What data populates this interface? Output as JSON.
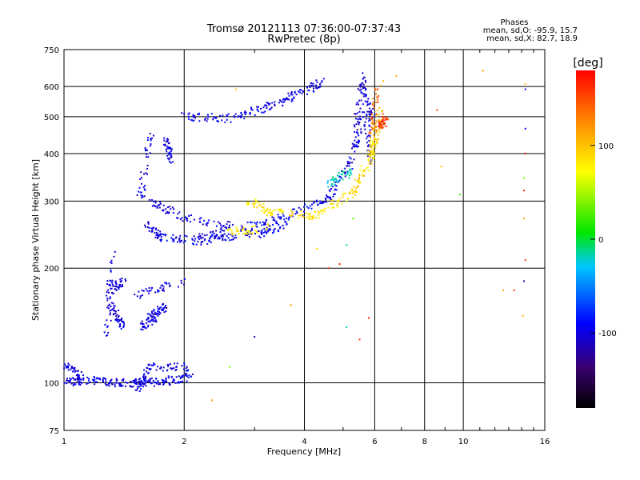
{
  "chart_data": {
    "type": "scatter",
    "title": "Tromsø 20121113 07:36:00-07:37:43",
    "subtitle": "RwPretec (8p)",
    "xlabel": "Frequency [MHz]",
    "ylabel": "Stationary phase Virtual Height [km]",
    "x_scale": "log2",
    "y_scale": "log",
    "xlim": [
      1,
      16
    ],
    "ylim": [
      75,
      750
    ],
    "x_ticks": [
      1,
      2,
      4,
      6,
      8,
      10,
      16
    ],
    "y_ticks": [
      75,
      100,
      200,
      300,
      400,
      500,
      600,
      750
    ],
    "grid": true,
    "colorbar": {
      "label": "[deg]",
      "range": [
        -180,
        180
      ],
      "ticks": [
        100,
        0,
        -100
      ],
      "colors": [
        "#000000",
        "#3a0070",
        "#0000ff",
        "#00c8ff",
        "#00e600",
        "#ffff00",
        "#ff8800",
        "#ff0000"
      ]
    },
    "stats": {
      "header": "Phases",
      "line_o": "mean, sd,O: -95.9, 15.7",
      "line_x": "mean, sd,X:  82.7, 18.9"
    },
    "series": [
      {
        "segments": [
          [
            1.0,
            100,
            1.15,
            102,
            -100
          ],
          [
            1.15,
            102,
            1.35,
            100,
            -95
          ],
          [
            1.35,
            100,
            1.55,
            100,
            -100
          ],
          [
            1.55,
            100,
            1.8,
            101,
            -98
          ],
          [
            1.8,
            101,
            2.1,
            104,
            -95
          ],
          [
            1.0,
            112,
            1.1,
            104,
            -100
          ],
          [
            1.28,
            130,
            1.32,
            220,
            -100
          ],
          [
            1.3,
            175,
            1.42,
            185,
            -100
          ],
          [
            1.32,
            160,
            1.4,
            140,
            -100
          ],
          [
            1.52,
            95,
            1.65,
            110,
            -100
          ],
          [
            1.6,
            110,
            2.05,
            110,
            -98
          ],
          [
            1.52,
            170,
            2.0,
            185,
            -100
          ],
          [
            1.55,
            140,
            1.7,
            150,
            -100
          ],
          [
            1.65,
            150,
            1.8,
            160,
            -100
          ],
          [
            1.55,
            300,
            1.65,
            450,
            -100
          ],
          [
            1.6,
            260,
            1.75,
            240,
            -100
          ],
          [
            1.75,
            240,
            2.2,
            236,
            -98
          ],
          [
            2.2,
            236,
            3.0,
            245,
            -95
          ],
          [
            3.0,
            245,
            3.6,
            260,
            -95
          ],
          [
            1.65,
            300,
            2.0,
            270,
            -100
          ],
          [
            2.0,
            270,
            2.8,
            255,
            -98
          ],
          [
            2.8,
            255,
            3.5,
            270,
            -95
          ],
          [
            3.5,
            270,
            4.5,
            300,
            -95
          ],
          [
            4.5,
            300,
            5.2,
            370,
            -95
          ],
          [
            5.2,
            370,
            5.5,
            460,
            -100
          ],
          [
            5.4,
            460,
            5.6,
            640,
            -100
          ],
          [
            5.6,
            640,
            5.9,
            500,
            -100
          ],
          [
            5.7,
            520,
            5.85,
            380,
            -95
          ],
          [
            1.85,
            380,
            1.8,
            440,
            -100
          ],
          [
            2.0,
            500,
            2.6,
            495,
            -95
          ],
          [
            2.6,
            495,
            3.2,
            530,
            -95
          ],
          [
            3.2,
            530,
            3.8,
            570,
            -98
          ],
          [
            3.8,
            570,
            4.5,
            620,
            -98
          ],
          [
            2.2,
            240,
            2.6,
            250,
            -100
          ],
          [
            2.6,
            250,
            3.3,
            255,
            80
          ],
          [
            2.9,
            300,
            3.3,
            280,
            82
          ],
          [
            3.3,
            280,
            4.2,
            275,
            85
          ],
          [
            4.2,
            275,
            5.2,
            310,
            88
          ],
          [
            5.2,
            310,
            5.8,
            380,
            90
          ],
          [
            5.8,
            380,
            6.0,
            430,
            85
          ],
          [
            6.0,
            430,
            6.2,
            520,
            100
          ],
          [
            5.9,
            440,
            6.1,
            600,
            140
          ],
          [
            6.2,
            470,
            6.4,
            500,
            160
          ],
          [
            4.5,
            330,
            5.3,
            360,
            -20
          ]
        ]
      }
    ],
    "scattered_points": [
      [
        2.7,
        590,
        100
      ],
      [
        2.6,
        110,
        40
      ],
      [
        2.35,
        90,
        120
      ],
      [
        3.0,
        132,
        -100
      ],
      [
        3.7,
        160,
        120
      ],
      [
        4.6,
        200,
        160
      ],
      [
        4.9,
        205,
        170
      ],
      [
        5.1,
        230,
        -10
      ],
      [
        5.8,
        148,
        170
      ],
      [
        5.5,
        130,
        160
      ],
      [
        6.8,
        640,
        110
      ],
      [
        8.6,
        520,
        150
      ],
      [
        8.8,
        370,
        100
      ],
      [
        9.8,
        312,
        20
      ],
      [
        11.2,
        660,
        120
      ],
      [
        12.6,
        175,
        115
      ],
      [
        13.4,
        175,
        160
      ],
      [
        14.3,
        610,
        100
      ],
      [
        14.3,
        400,
        200
      ],
      [
        14.2,
        345,
        40
      ],
      [
        14.2,
        320,
        170
      ],
      [
        14.2,
        270,
        110
      ],
      [
        14.3,
        210,
        160
      ],
      [
        14.2,
        185,
        -120
      ],
      [
        14.1,
        150,
        110
      ],
      [
        14.3,
        465,
        -90
      ],
      [
        14.3,
        590,
        -100
      ],
      [
        5.3,
        270,
        20
      ],
      [
        4.3,
        225,
        90
      ],
      [
        6.3,
        620,
        100
      ],
      [
        5.1,
        140,
        -20
      ]
    ]
  }
}
